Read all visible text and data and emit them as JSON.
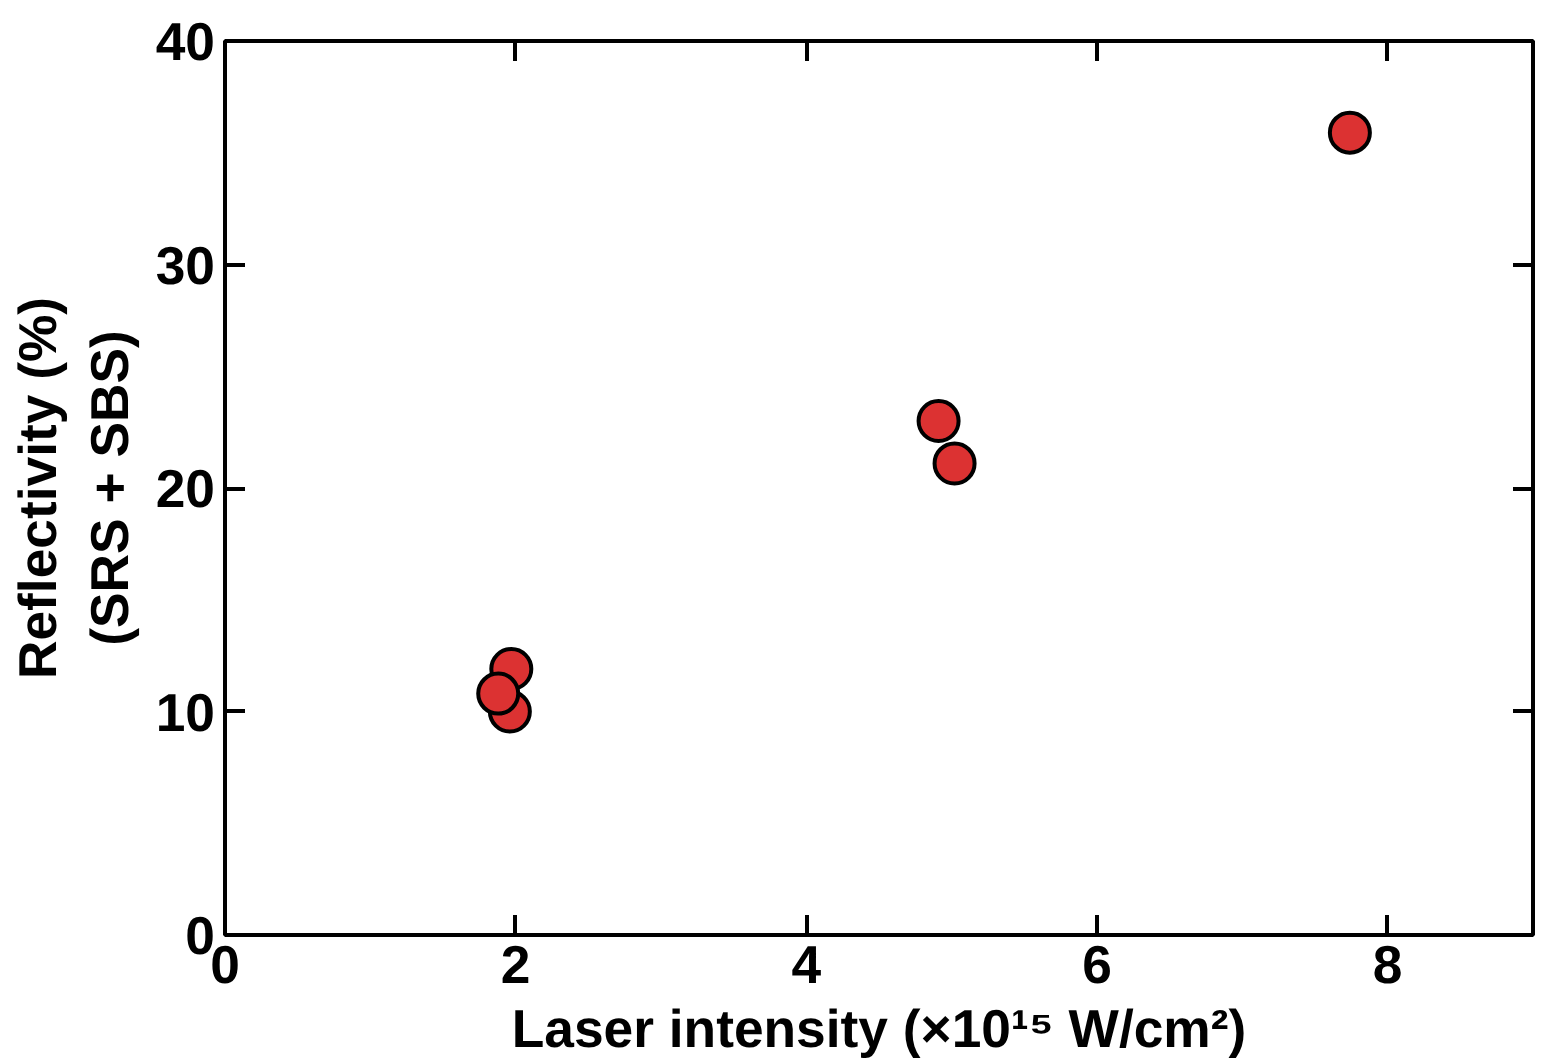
{
  "chart_data": {
    "type": "scatter",
    "xlabel": "Laser intensity (×10¹⁵ W/cm²)",
    "ylabel": "Reflectivity (%)\n(SRS + SBS)",
    "x": [
      1.96,
      1.97,
      4.91,
      5.02,
      7.74,
      1.88
    ],
    "values": [
      10.0,
      11.9,
      23.0,
      21.1,
      35.9,
      10.8
    ],
    "color": "#dc3232",
    "marker": "circle",
    "xlim": [
      0,
      9
    ],
    "ylim": [
      0,
      40
    ],
    "xticks": [
      0,
      2,
      4,
      6,
      8
    ],
    "yticks": [
      0,
      10,
      20,
      30,
      40
    ],
    "grid": false
  }
}
